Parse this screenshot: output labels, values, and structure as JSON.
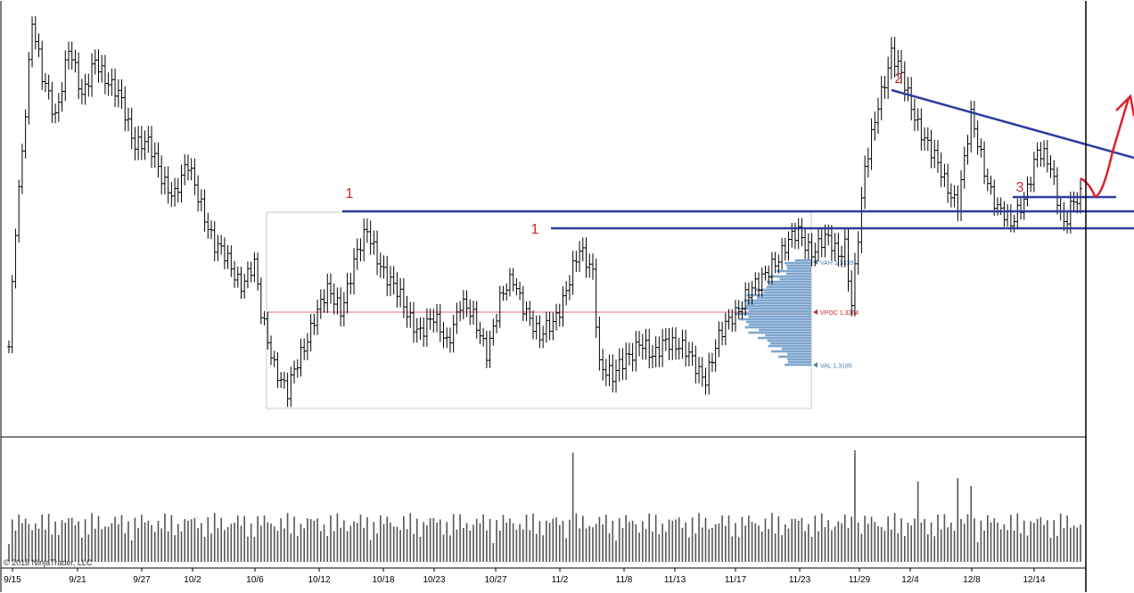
{
  "chart_data": {
    "type": "ohlc",
    "copyright": "© 2018 NinjaTrader, LLC",
    "x_ticks": [
      "9/15",
      "9/21",
      "9/27",
      "10/2",
      "10/6",
      "10/12",
      "10/18",
      "10/23",
      "10/27",
      "11/2",
      "11/8",
      "11/13",
      "11/17",
      "11/23",
      "11/29",
      "12/4",
      "12/8",
      "12/14"
    ],
    "grid": false,
    "volume_pane": true,
    "price_path": [
      [
        0,
        1.3205
      ],
      [
        2,
        1.339
      ],
      [
        4,
        1.351
      ],
      [
        7,
        1.37
      ],
      [
        10,
        1.361
      ],
      [
        14,
        1.356
      ],
      [
        18,
        1.366
      ],
      [
        22,
        1.358
      ],
      [
        26,
        1.365
      ],
      [
        30,
        1.36
      ],
      [
        34,
        1.358
      ],
      [
        38,
        1.352
      ],
      [
        42,
        1.351
      ],
      [
        46,
        1.347
      ],
      [
        50,
        1.344
      ],
      [
        54,
        1.348
      ],
      [
        58,
        1.343
      ],
      [
        62,
        1.336
      ],
      [
        66,
        1.334
      ],
      [
        70,
        1.331
      ],
      [
        74,
        1.333
      ],
      [
        76,
        1.326
      ],
      [
        80,
        1.319
      ],
      [
        84,
        1.314
      ],
      [
        88,
        1.32
      ],
      [
        92,
        1.326
      ],
      [
        96,
        1.329
      ],
      [
        100,
        1.327
      ],
      [
        104,
        1.334
      ],
      [
        108,
        1.338
      ],
      [
        112,
        1.334
      ],
      [
        116,
        1.33
      ],
      [
        120,
        1.326
      ],
      [
        124,
        1.324
      ],
      [
        128,
        1.325
      ],
      [
        132,
        1.322
      ],
      [
        136,
        1.328
      ],
      [
        140,
        1.325
      ],
      [
        144,
        1.321
      ],
      [
        148,
        1.328
      ],
      [
        152,
        1.331
      ],
      [
        156,
        1.327
      ],
      [
        160,
        1.322
      ],
      [
        164,
        1.325
      ],
      [
        168,
        1.33
      ],
      [
        172,
        1.335
      ],
      [
        176,
        1.333
      ],
      [
        178,
        1.319
      ],
      [
        182,
        1.316
      ],
      [
        186,
        1.32
      ],
      [
        190,
        1.322
      ],
      [
        194,
        1.319
      ],
      [
        198,
        1.323
      ],
      [
        202,
        1.321
      ],
      [
        206,
        1.319
      ],
      [
        210,
        1.317
      ],
      [
        214,
        1.322
      ],
      [
        218,
        1.326
      ],
      [
        222,
        1.329
      ],
      [
        226,
        1.33
      ],
      [
        230,
        1.334
      ],
      [
        234,
        1.336
      ],
      [
        238,
        1.338
      ],
      [
        242,
        1.336
      ],
      [
        246,
        1.337
      ],
      [
        250,
        1.335
      ],
      [
        252,
        1.337
      ],
      [
        254,
        1.328
      ],
      [
        258,
        1.347
      ],
      [
        262,
        1.358
      ],
      [
        266,
        1.365
      ],
      [
        270,
        1.36
      ],
      [
        274,
        1.355
      ],
      [
        278,
        1.35
      ],
      [
        282,
        1.346
      ],
      [
        286,
        1.343
      ],
      [
        290,
        1.355
      ],
      [
        294,
        1.348
      ],
      [
        298,
        1.342
      ],
      [
        302,
        1.339
      ],
      [
        306,
        1.344
      ],
      [
        310,
        1.35
      ],
      [
        314,
        1.348
      ],
      [
        318,
        1.34
      ],
      [
        320,
        1.342
      ],
      [
        323,
        1.343
      ]
    ],
    "volume_max": 61000,
    "horizontal_lines": [
      {
        "label": "1",
        "y": 1.341,
        "color": "#2e3b9e"
      },
      {
        "label": "1",
        "y": 1.3385,
        "color": "#2e3b9e"
      }
    ],
    "annotations": [
      {
        "text": "1",
        "color": "#c8282d"
      },
      {
        "text": "1",
        "color": "#c8282d"
      },
      {
        "text": "2",
        "color": "#c8282d"
      },
      {
        "text": "3",
        "color": "#c8282d"
      }
    ],
    "volume_profile": {
      "vah": {
        "text": "VAH 1.3339",
        "value": 1.3339,
        "color": "#4a7fb5"
      },
      "vpoc": {
        "text": "VPOC 1.3264",
        "value": 1.3264,
        "color": "#c8282d"
      },
      "val": {
        "text": "VAL 1.3185",
        "value": 1.3185,
        "color": "#4a7fb5"
      },
      "fill": "#7ea6cf"
    },
    "colors": {
      "bars": "#000000",
      "trendlines": "#2e3b9e",
      "arrow": "#e0202a",
      "text_red": "#c8282d"
    }
  }
}
